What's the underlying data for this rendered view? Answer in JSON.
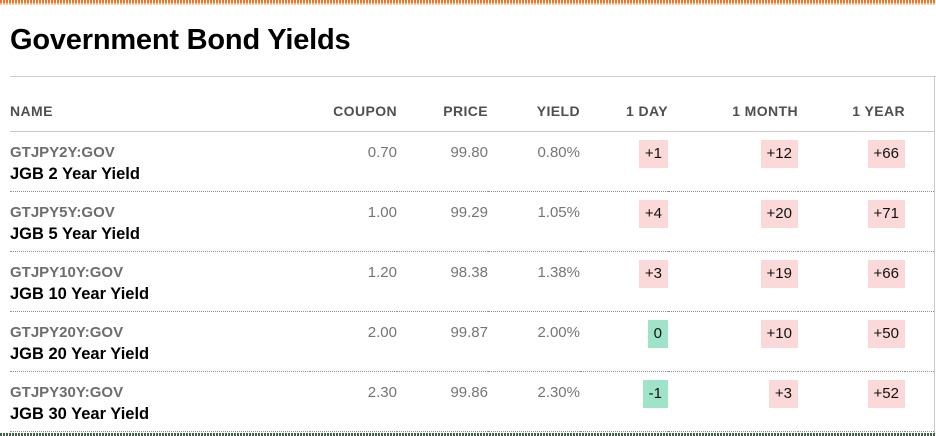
{
  "header": {
    "title": "Government Bond Yields"
  },
  "colors": {
    "accent_bar_orange": "#f36f21",
    "change_up_bg_pink": "#fbd9d9",
    "change_down_bg_mint": "#9fe3c9",
    "bottom_bar_green": "#3e6149"
  },
  "table": {
    "columns": [
      {
        "label": "NAME"
      },
      {
        "label": "COUPON"
      },
      {
        "label": "PRICE"
      },
      {
        "label": "YIELD"
      },
      {
        "label": "1 DAY"
      },
      {
        "label": "1 MONTH"
      },
      {
        "label": "1 YEAR"
      }
    ],
    "rows": [
      {
        "ticker": "GTJPY2Y:GOV",
        "name": "JGB 2 Year Yield",
        "coupon": "0.70",
        "price": "99.80",
        "yield": "0.80%",
        "changes": {
          "one_day": {
            "value": "+1",
            "tone": "up"
          },
          "one_month": {
            "value": "+12",
            "tone": "up"
          },
          "one_year": {
            "value": "+66",
            "tone": "up"
          }
        }
      },
      {
        "ticker": "GTJPY5Y:GOV",
        "name": "JGB 5 Year Yield",
        "coupon": "1.00",
        "price": "99.29",
        "yield": "1.05%",
        "changes": {
          "one_day": {
            "value": "+4",
            "tone": "up"
          },
          "one_month": {
            "value": "+20",
            "tone": "up"
          },
          "one_year": {
            "value": "+71",
            "tone": "up"
          }
        }
      },
      {
        "ticker": "GTJPY10Y:GOV",
        "name": "JGB 10 Year Yield",
        "coupon": "1.20",
        "price": "98.38",
        "yield": "1.38%",
        "changes": {
          "one_day": {
            "value": "+3",
            "tone": "up"
          },
          "one_month": {
            "value": "+19",
            "tone": "up"
          },
          "one_year": {
            "value": "+66",
            "tone": "up"
          }
        }
      },
      {
        "ticker": "GTJPY20Y:GOV",
        "name": "JGB 20 Year Yield",
        "coupon": "2.00",
        "price": "99.87",
        "yield": "2.00%",
        "changes": {
          "one_day": {
            "value": "0",
            "tone": "down"
          },
          "one_month": {
            "value": "+10",
            "tone": "up"
          },
          "one_year": {
            "value": "+50",
            "tone": "up"
          }
        }
      },
      {
        "ticker": "GTJPY30Y:GOV",
        "name": "JGB 30 Year Yield",
        "coupon": "2.30",
        "price": "99.86",
        "yield": "2.30%",
        "changes": {
          "one_day": {
            "value": "-1",
            "tone": "down"
          },
          "one_month": {
            "value": "+3",
            "tone": "up"
          },
          "one_year": {
            "value": "+52",
            "tone": "up"
          }
        }
      }
    ]
  }
}
